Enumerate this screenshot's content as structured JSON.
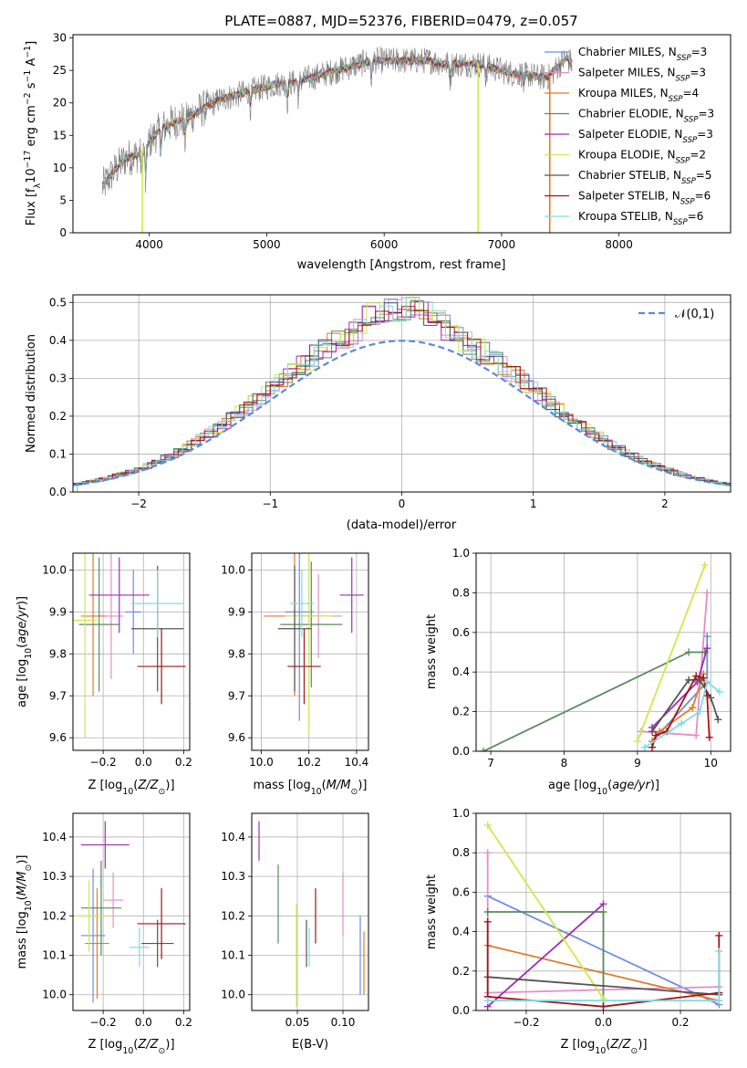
{
  "figure": {
    "title": "PLATE=0887, MJD=52376, FIBERID=0479, z=0.057"
  },
  "models": [
    {
      "name": "Chabrier MILES, N_SSP=3",
      "imf": "Chabrier",
      "lib": "MILES",
      "nssp": "3",
      "color": "#6b8ee3"
    },
    {
      "name": "Salpeter MILES, N_SSP=3",
      "imf": "Salpeter",
      "lib": "MILES",
      "nssp": "3",
      "color": "#e28ec8"
    },
    {
      "name": "Kroupa MILES, N_SSP=4",
      "imf": "Kroupa",
      "lib": "MILES",
      "nssp": "4",
      "color": "#e07b28"
    },
    {
      "name": "Chabrier ELODIE, N_SSP=3",
      "imf": "Chabrier",
      "lib": "ELODIE",
      "nssp": "3",
      "color": "#5a8a5a"
    },
    {
      "name": "Salpeter ELODIE, N_SSP=3",
      "imf": "Salpeter",
      "lib": "ELODIE",
      "nssp": "3",
      "color": "#9b2fb5"
    },
    {
      "name": "Kroupa ELODIE, N_SSP=2",
      "imf": "Kroupa",
      "lib": "ELODIE",
      "nssp": "2",
      "color": "#cfe84a"
    },
    {
      "name": "Chabrier STELIB, N_SSP=5",
      "imf": "Chabrier",
      "lib": "STELIB",
      "nssp": "5",
      "color": "#555555"
    },
    {
      "name": "Salpeter STELIB, N_SSP=6",
      "imf": "Salpeter",
      "lib": "STELIB",
      "nssp": "6",
      "color": "#a01515"
    },
    {
      "name": "Kroupa STELIB, N_SSP=6",
      "imf": "Kroupa",
      "lib": "STELIB",
      "nssp": "6",
      "color": "#7fdde2"
    }
  ],
  "chart_data": [
    {
      "id": "spectrum",
      "type": "line",
      "xlabel": "wavelength [Angstrom, rest frame]",
      "ylabel": "Flux [f_λ 10^-17 erg cm^-2 s^-1 A^-1]",
      "xlim": [
        3350,
        8950
      ],
      "ylim": [
        0,
        30.5
      ],
      "xticks": [
        4000,
        5000,
        6000,
        7000,
        8000
      ],
      "yticks": [
        0,
        5,
        10,
        15,
        20,
        25,
        30
      ],
      "legend": "top-right",
      "continuum": [
        [
          3600,
          7.0
        ],
        [
          3700,
          9.5
        ],
        [
          3800,
          11.5
        ],
        [
          3900,
          12.0
        ],
        [
          4000,
          14.0
        ],
        [
          4100,
          16.0
        ],
        [
          4200,
          17.0
        ],
        [
          4300,
          17.5
        ],
        [
          4400,
          18.5
        ],
        [
          4500,
          19.5
        ],
        [
          4600,
          20.5
        ],
        [
          4700,
          21.0
        ],
        [
          4800,
          21.5
        ],
        [
          4900,
          22.0
        ],
        [
          5000,
          22.5
        ],
        [
          5100,
          23.0
        ],
        [
          5200,
          23.0
        ],
        [
          5300,
          23.5
        ],
        [
          5400,
          24.0
        ],
        [
          5500,
          24.5
        ],
        [
          5600,
          25.0
        ],
        [
          5700,
          25.5
        ],
        [
          5800,
          26.0
        ],
        [
          5900,
          26.5
        ],
        [
          6000,
          26.5
        ],
        [
          6100,
          26.5
        ],
        [
          6200,
          26.5
        ],
        [
          6300,
          26.5
        ],
        [
          6400,
          26.5
        ],
        [
          6500,
          26.0
        ],
        [
          6600,
          26.0
        ],
        [
          6700,
          26.0
        ],
        [
          6800,
          26.0
        ],
        [
          6900,
          25.5
        ],
        [
          7000,
          25.0
        ],
        [
          7100,
          24.5
        ],
        [
          7200,
          24.5
        ],
        [
          7300,
          24.0
        ],
        [
          7400,
          24.0
        ],
        [
          7500,
          26.0
        ],
        [
          7550,
          27.0
        ],
        [
          7600,
          26.0
        ]
      ],
      "absorption_lines": [
        [
          3934,
          3.0
        ],
        [
          3969,
          6.0
        ],
        [
          4101,
          4.0
        ],
        [
          4304,
          3.5
        ],
        [
          4861,
          2.5
        ],
        [
          5175,
          3.0
        ],
        [
          5270,
          2.5
        ],
        [
          5892,
          3.0
        ],
        [
          6563,
          2.5
        ],
        [
          6867,
          2.0
        ],
        [
          7190,
          2.0
        ]
      ],
      "dropouts": [
        [
          3940,
          "Kroupa ELODIE"
        ],
        [
          6800,
          "Kroupa ELODIE"
        ],
        [
          7410,
          "Kroupa MILES"
        ]
      ]
    },
    {
      "id": "residuals",
      "type": "histogram",
      "xlabel": "(data-model)/error",
      "ylabel": "Normed distribution",
      "xlim": [
        -2.5,
        2.5
      ],
      "ylim": [
        0,
        0.52
      ],
      "xticks": [
        -2,
        -1,
        0,
        1,
        2
      ],
      "yticks": [
        0,
        0.1,
        0.2,
        0.3,
        0.4,
        0.5
      ],
      "legend": "top-right",
      "reference_curve": {
        "name": "𝒩(0,1)",
        "mean": 0,
        "sigma": 1
      }
    },
    {
      "id": "age_vs_Z",
      "type": "scatter",
      "xlabel": "Z [log10(Z/Z⊙)]",
      "ylabel": "age  [log10(age/yr)]",
      "xlim": [
        -0.35,
        0.23
      ],
      "ylim": [
        9.57,
        10.04
      ],
      "xticks": [
        -0.2,
        0.0,
        0.2
      ],
      "yticks": [
        9.6,
        9.7,
        9.8,
        9.9,
        10.0
      ],
      "points": [
        {
          "model": 0,
          "x": -0.05,
          "y": 9.9,
          "xerr": 0.04,
          "yerr": 0.1
        },
        {
          "model": 1,
          "x": -0.16,
          "y": 9.89,
          "xerr": 0.06,
          "yerr": 0.15
        },
        {
          "model": 2,
          "x": -0.25,
          "y": 9.89,
          "xerr": 0.06,
          "yerr": 0.19
        },
        {
          "model": 3,
          "x": -0.22,
          "y": 9.87,
          "xerr": 0.1,
          "yerr": 0.16
        },
        {
          "model": 4,
          "x": -0.12,
          "y": 9.94,
          "xerr": 0.15,
          "yerr": 0.09
        },
        {
          "model": 5,
          "x": -0.29,
          "y": 9.88,
          "xerr": 0.06,
          "yerr": 0.28
        },
        {
          "model": 6,
          "x": 0.07,
          "y": 9.86,
          "xerr": 0.13,
          "yerr": 0.15
        },
        {
          "model": 7,
          "x": 0.09,
          "y": 9.77,
          "xerr": 0.12,
          "yerr": 0.09
        },
        {
          "model": 8,
          "x": 0.07,
          "y": 9.92,
          "xerr": 0.13,
          "yerr": 0.08
        }
      ]
    },
    {
      "id": "age_vs_mass",
      "type": "scatter",
      "xlabel": "mass [log10(M/M⊙)]",
      "ylabel": "",
      "xlim": [
        9.96,
        10.45
      ],
      "ylim": [
        9.57,
        10.04
      ],
      "xticks": [
        10.0,
        10.2,
        10.4
      ],
      "yticks": [
        9.6,
        9.7,
        9.8,
        9.9,
        10.0
      ],
      "points": [
        {
          "model": 0,
          "x": 10.16,
          "y": 9.9,
          "xerr": 0.06,
          "yerr": 0.26
        },
        {
          "model": 1,
          "x": 10.24,
          "y": 9.89,
          "xerr": 0.1,
          "yerr": 0.1
        },
        {
          "model": 2,
          "x": 10.14,
          "y": 9.89,
          "xerr": 0.13,
          "yerr": 0.19
        },
        {
          "model": 3,
          "x": 10.21,
          "y": 9.87,
          "xerr": 0.13,
          "yerr": 0.15
        },
        {
          "model": 4,
          "x": 10.38,
          "y": 9.94,
          "xerr": 0.05,
          "yerr": 0.09
        },
        {
          "model": 5,
          "x": 10.2,
          "y": 9.89,
          "xerr": 0.1,
          "yerr": 0.28
        },
        {
          "model": 6,
          "x": 10.14,
          "y": 9.86,
          "xerr": 0.07,
          "yerr": 0.15
        },
        {
          "model": 7,
          "x": 10.18,
          "y": 9.77,
          "xerr": 0.07,
          "yerr": 0.09
        },
        {
          "model": 8,
          "x": 10.17,
          "y": 9.92,
          "xerr": 0.05,
          "yerr": 0.08
        }
      ]
    },
    {
      "id": "mass_vs_Z",
      "type": "scatter",
      "xlabel": "Z [log10(Z/Z⊙)]",
      "ylabel": "mass [log10(M/M⊙)]",
      "xlim": [
        -0.35,
        0.23
      ],
      "ylim": [
        9.96,
        10.46
      ],
      "xticks": [
        -0.2,
        0.0,
        0.2
      ],
      "yticks": [
        10.0,
        10.1,
        10.2,
        10.3,
        10.4
      ],
      "points": [
        {
          "model": 0,
          "x": -0.25,
          "y": 10.15,
          "xerr": 0.06,
          "yerr": 0.17
        },
        {
          "model": 1,
          "x": -0.15,
          "y": 10.24,
          "xerr": 0.05,
          "yerr": 0.07
        },
        {
          "model": 2,
          "x": -0.23,
          "y": 10.13,
          "xerr": 0.06,
          "yerr": 0.14
        },
        {
          "model": 3,
          "x": -0.21,
          "y": 10.22,
          "xerr": 0.1,
          "yerr": 0.12
        },
        {
          "model": 4,
          "x": -0.19,
          "y": 10.38,
          "xerr": 0.12,
          "yerr": 0.06
        },
        {
          "model": 5,
          "x": -0.27,
          "y": 10.2,
          "xerr": 0.08,
          "yerr": 0.09
        },
        {
          "model": 6,
          "x": 0.07,
          "y": 10.13,
          "xerr": 0.08,
          "yerr": 0.06
        },
        {
          "model": 7,
          "x": 0.09,
          "y": 10.18,
          "xerr": 0.12,
          "yerr": 0.09
        },
        {
          "model": 8,
          "x": -0.02,
          "y": 10.12,
          "xerr": 0.05,
          "yerr": 0.05
        }
      ]
    },
    {
      "id": "mass_vs_EBV",
      "type": "scatter",
      "xlabel": "E(B-V)",
      "ylabel": "",
      "xlim": [
        0.0,
        0.128
      ],
      "ylim": [
        9.96,
        10.46
      ],
      "xticks": [
        0.05,
        0.1
      ],
      "yticks": [
        10.0,
        10.1,
        10.2,
        10.3,
        10.4
      ],
      "points": [
        {
          "model": 0,
          "x": 0.119,
          "y": 10.1,
          "xerr": 0,
          "yerr": 0.1
        },
        {
          "model": 1,
          "x": 0.1,
          "y": 10.23,
          "xerr": 0,
          "yerr": 0.08
        },
        {
          "model": 2,
          "x": 0.123,
          "y": 10.08,
          "xerr": 0,
          "yerr": 0.08
        },
        {
          "model": 3,
          "x": 0.029,
          "y": 10.23,
          "xerr": 0,
          "yerr": 0.1
        },
        {
          "model": 4,
          "x": 0.008,
          "y": 10.39,
          "xerr": 0,
          "yerr": 0.05
        },
        {
          "model": 5,
          "x": 0.049,
          "y": 10.1,
          "xerr": 0,
          "yerr": 0.13
        },
        {
          "model": 6,
          "x": 0.06,
          "y": 10.13,
          "xerr": 0,
          "yerr": 0.06
        },
        {
          "model": 7,
          "x": 0.07,
          "y": 10.2,
          "xerr": 0,
          "yerr": 0.07
        },
        {
          "model": 8,
          "x": 0.063,
          "y": 10.12,
          "xerr": 0,
          "yerr": 0.05
        }
      ]
    },
    {
      "id": "weight_vs_age",
      "type": "line",
      "xlabel": "age  [log10(age/yr)]",
      "ylabel": "mass weight",
      "xlim": [
        6.8,
        10.27
      ],
      "ylim": [
        0,
        1.0
      ],
      "xticks": [
        7,
        8,
        9,
        10
      ],
      "yticks": [
        0.0,
        0.2,
        0.4,
        0.6,
        0.8,
        1.0
      ],
      "series": [
        {
          "model": 0,
          "x": [
            9.2,
            9.95,
            9.95
          ],
          "y": [
            0.05,
            0.35,
            0.58
          ]
        },
        {
          "model": 1,
          "x": [
            9.05,
            9.8,
            9.95
          ],
          "y": [
            0.1,
            0.08,
            0.8
          ]
        },
        {
          "model": 2,
          "x": [
            9.2,
            9.3,
            9.75,
            9.9
          ],
          "y": [
            0.05,
            0.1,
            0.22,
            0.39
          ]
        },
        {
          "model": 3,
          "x": [
            6.9,
            9.7,
            9.92
          ],
          "y": [
            0.0,
            0.5,
            0.5
          ]
        },
        {
          "model": 4,
          "x": [
            9.2,
            9.82,
            9.95
          ],
          "y": [
            0.12,
            0.35,
            0.52
          ]
        },
        {
          "model": 5,
          "x": [
            9.0,
            9.92
          ],
          "y": [
            0.05,
            0.94
          ]
        },
        {
          "model": 6,
          "x": [
            9.2,
            9.7,
            9.85,
            10.0,
            10.1
          ],
          "y": [
            0.1,
            0.36,
            0.36,
            0.27,
            0.16
          ]
        },
        {
          "model": 7,
          "x": [
            9.2,
            9.25,
            9.4,
            9.8,
            9.9,
            9.95,
            9.98
          ],
          "y": [
            0.02,
            0.08,
            0.1,
            0.38,
            0.37,
            0.28,
            0.07
          ]
        },
        {
          "model": 8,
          "x": [
            9.1,
            9.6,
            9.85,
            9.95,
            10.12
          ],
          "y": [
            0.02,
            0.14,
            0.2,
            0.35,
            0.3
          ]
        }
      ]
    },
    {
      "id": "weight_vs_Z",
      "type": "line",
      "xlabel": "Z [log10(Z/Z⊙)]",
      "ylabel": "mass weight",
      "xlim": [
        -0.33,
        0.33
      ],
      "ylim": [
        0,
        1.0
      ],
      "xticks": [
        -0.2,
        0.0,
        0.2
      ],
      "yticks": [
        0.0,
        0.2,
        0.4,
        0.6,
        0.8,
        1.0
      ],
      "series": [
        {
          "model": 0,
          "x": [
            -0.3,
            0.3
          ],
          "y": [
            0.58,
            0.03
          ]
        },
        {
          "model": 1,
          "x": [
            -0.3,
            -0.3,
            0.3
          ],
          "y": [
            0.8,
            0.09,
            0.12
          ]
        },
        {
          "model": 2,
          "x": [
            -0.3,
            0.3
          ],
          "y": [
            0.33,
            0.05
          ]
        },
        {
          "model": 3,
          "x": [
            -0.3,
            0.0,
            0.0
          ],
          "y": [
            0.5,
            0.5,
            0.02
          ]
        },
        {
          "model": 4,
          "x": [
            -0.3,
            0.0
          ],
          "y": [
            0.02,
            0.54
          ]
        },
        {
          "model": 5,
          "x": [
            -0.3,
            0.0
          ],
          "y": [
            0.94,
            0.06
          ]
        },
        {
          "model": 6,
          "x": [
            -0.3,
            0.3
          ],
          "y": [
            0.17,
            0.08
          ]
        },
        {
          "model": 7,
          "x": [
            -0.3,
            -0.3,
            0.0,
            0.3,
            0.3
          ],
          "y": [
            0.45,
            0.07,
            0.02,
            0.09,
            0.38
          ]
        },
        {
          "model": 8,
          "x": [
            -0.3,
            0.3,
            0.3
          ],
          "y": [
            0.05,
            0.05,
            0.3
          ]
        }
      ]
    }
  ]
}
